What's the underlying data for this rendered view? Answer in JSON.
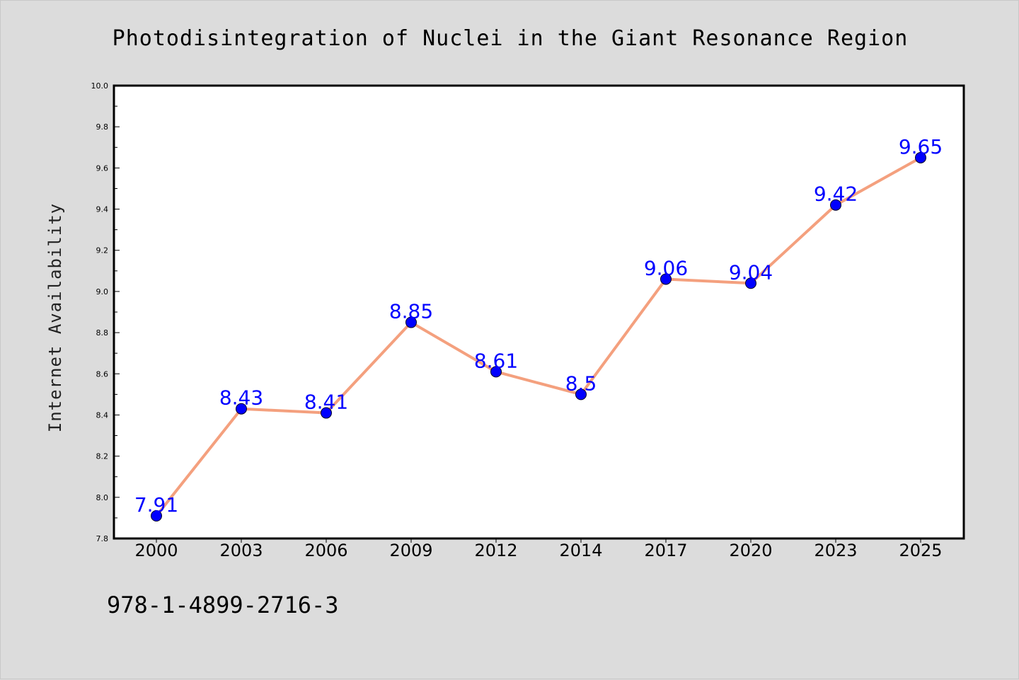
{
  "figure": {
    "footnote": "978-1-4899-2716-3"
  },
  "chart_data": {
    "type": "line",
    "title": "Photodisintegration of Nuclei in the Giant Resonance Region",
    "xlabel": "",
    "ylabel": "Internet Availability",
    "categories": [
      "2000",
      "2003",
      "2006",
      "2009",
      "2012",
      "2014",
      "2017",
      "2020",
      "2023",
      "2025"
    ],
    "series": [
      {
        "values": [
          7.91,
          8.43,
          8.41,
          8.85,
          8.61,
          8.5,
          9.06,
          9.04,
          9.42,
          9.65
        ],
        "data_labels": [
          "7.91",
          "8.43",
          "8.41",
          "8.85",
          "8.61",
          "8.5",
          "9.06",
          "9.04",
          "9.42",
          "9.65"
        ],
        "line_color": "#f4a07e",
        "marker_color": "#0000ff"
      }
    ],
    "ylim": [
      7.8,
      10.0
    ],
    "yticks": [
      "7.8",
      "8.0",
      "8.2",
      "8.4",
      "8.6",
      "8.8",
      "9.0",
      "9.2",
      "9.4",
      "9.6",
      "9.8",
      "10.0"
    ],
    "grid": false,
    "legend": "none",
    "colors": {
      "background": "#dcdcdc",
      "plot_background": "#ffffff",
      "label_color": "#0000ff"
    }
  }
}
